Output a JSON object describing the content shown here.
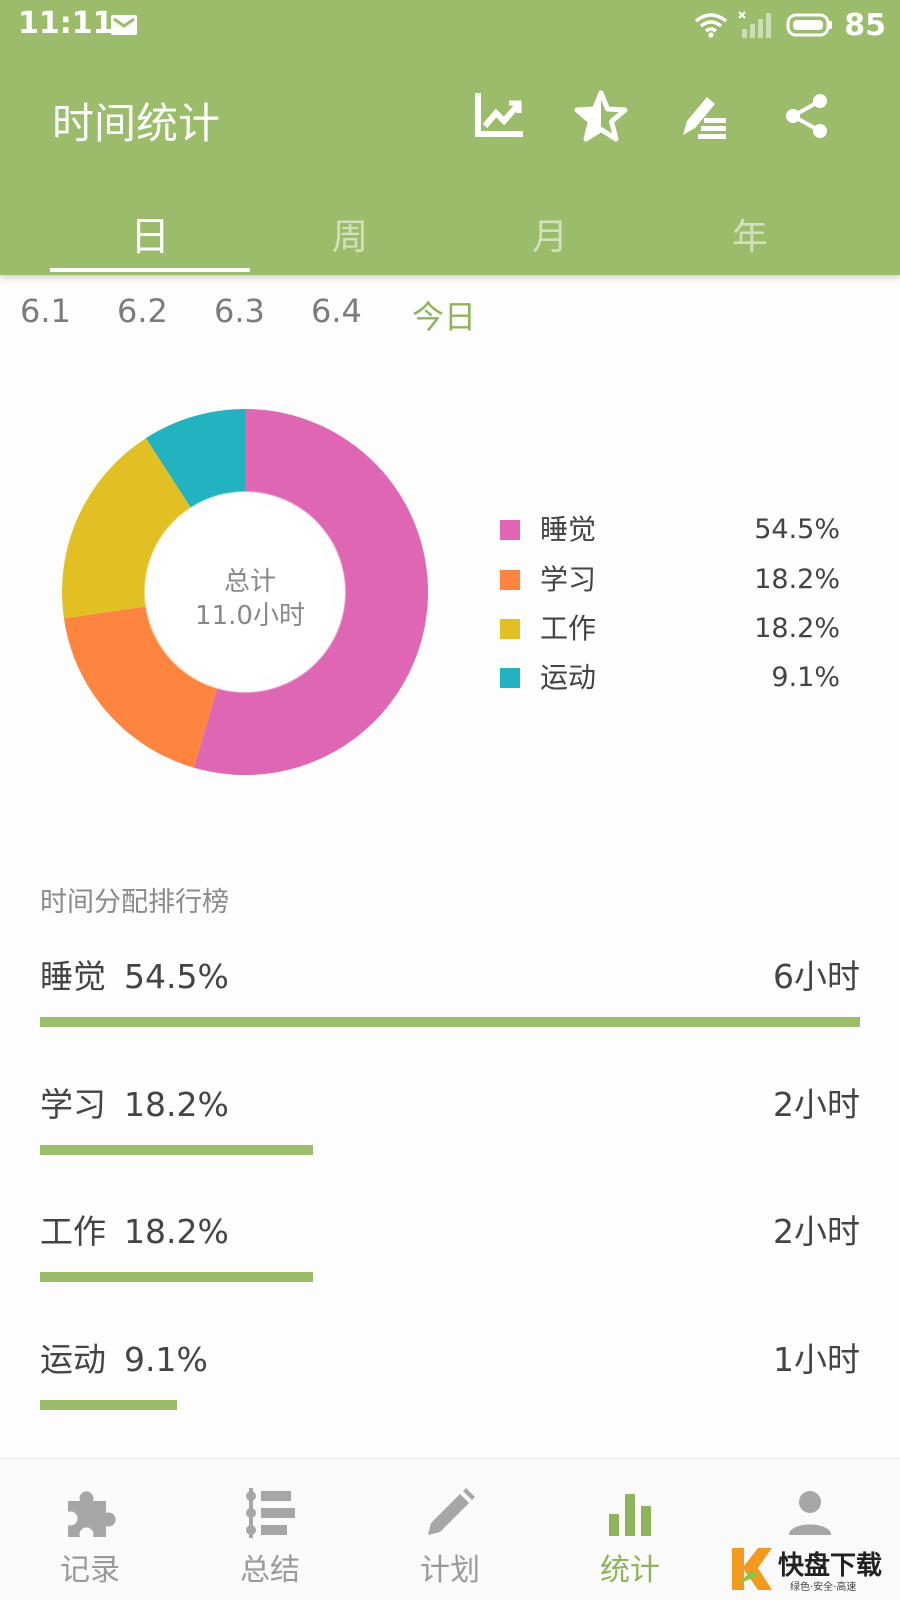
{
  "status_bar": {
    "time": "11:11",
    "battery": "85"
  },
  "toolbar": {
    "title": "时间统计",
    "actions": [
      {
        "icon": "trend-chart-icon"
      },
      {
        "icon": "star-icon"
      },
      {
        "icon": "edit-list-icon"
      },
      {
        "icon": "share-icon"
      }
    ]
  },
  "tabs": [
    {
      "label": "日",
      "active": true
    },
    {
      "label": "周",
      "active": false
    },
    {
      "label": "月",
      "active": false
    },
    {
      "label": "年",
      "active": false
    }
  ],
  "dates": [
    {
      "label": "6.1",
      "active": false
    },
    {
      "label": "6.2",
      "active": false
    },
    {
      "label": "6.3",
      "active": false
    },
    {
      "label": "6.4",
      "active": false
    },
    {
      "label": "今日",
      "active": true
    }
  ],
  "chart_data": {
    "type": "pie",
    "center_label": "总计",
    "center_value": "11.0小时",
    "categories": [
      "睡觉",
      "学习",
      "工作",
      "运动"
    ],
    "values": [
      54.5,
      18.2,
      18.2,
      9.1
    ],
    "value_labels": [
      "54.5%",
      "18.2%",
      "18.2%",
      "9.1%"
    ],
    "colors": [
      "#de66b2",
      "#fd8540",
      "#e2c024",
      "#23b2c0"
    ],
    "legend_position": "right"
  },
  "ranking": {
    "title": "时间分配排行榜",
    "items": [
      {
        "name": "睡觉",
        "percent": "54.5%",
        "duration": "6小时",
        "fraction": 1.0
      },
      {
        "name": "学习",
        "percent": "18.2%",
        "duration": "2小时",
        "fraction": 0.333
      },
      {
        "name": "工作",
        "percent": "18.2%",
        "duration": "2小时",
        "fraction": 0.333
      },
      {
        "name": "运动",
        "percent": "9.1%",
        "duration": "1小时",
        "fraction": 0.167
      }
    ]
  },
  "bottom_nav": [
    {
      "label": "记录",
      "icon": "puzzle-icon",
      "active": false
    },
    {
      "label": "总结",
      "icon": "timeline-list-icon",
      "active": false
    },
    {
      "label": "计划",
      "icon": "pencil-icon",
      "active": false
    },
    {
      "label": "统计",
      "icon": "bar-chart-icon",
      "active": true
    },
    {
      "label": "",
      "icon": "person-icon",
      "active": false
    }
  ],
  "watermark": {
    "logo_text": "快盘下载",
    "tagline": "绿色·安全·高速"
  },
  "colors": {
    "primary": "#9bbc6a",
    "accent_text": "#8fb35a",
    "inactive_text": "#9a9a9a"
  }
}
